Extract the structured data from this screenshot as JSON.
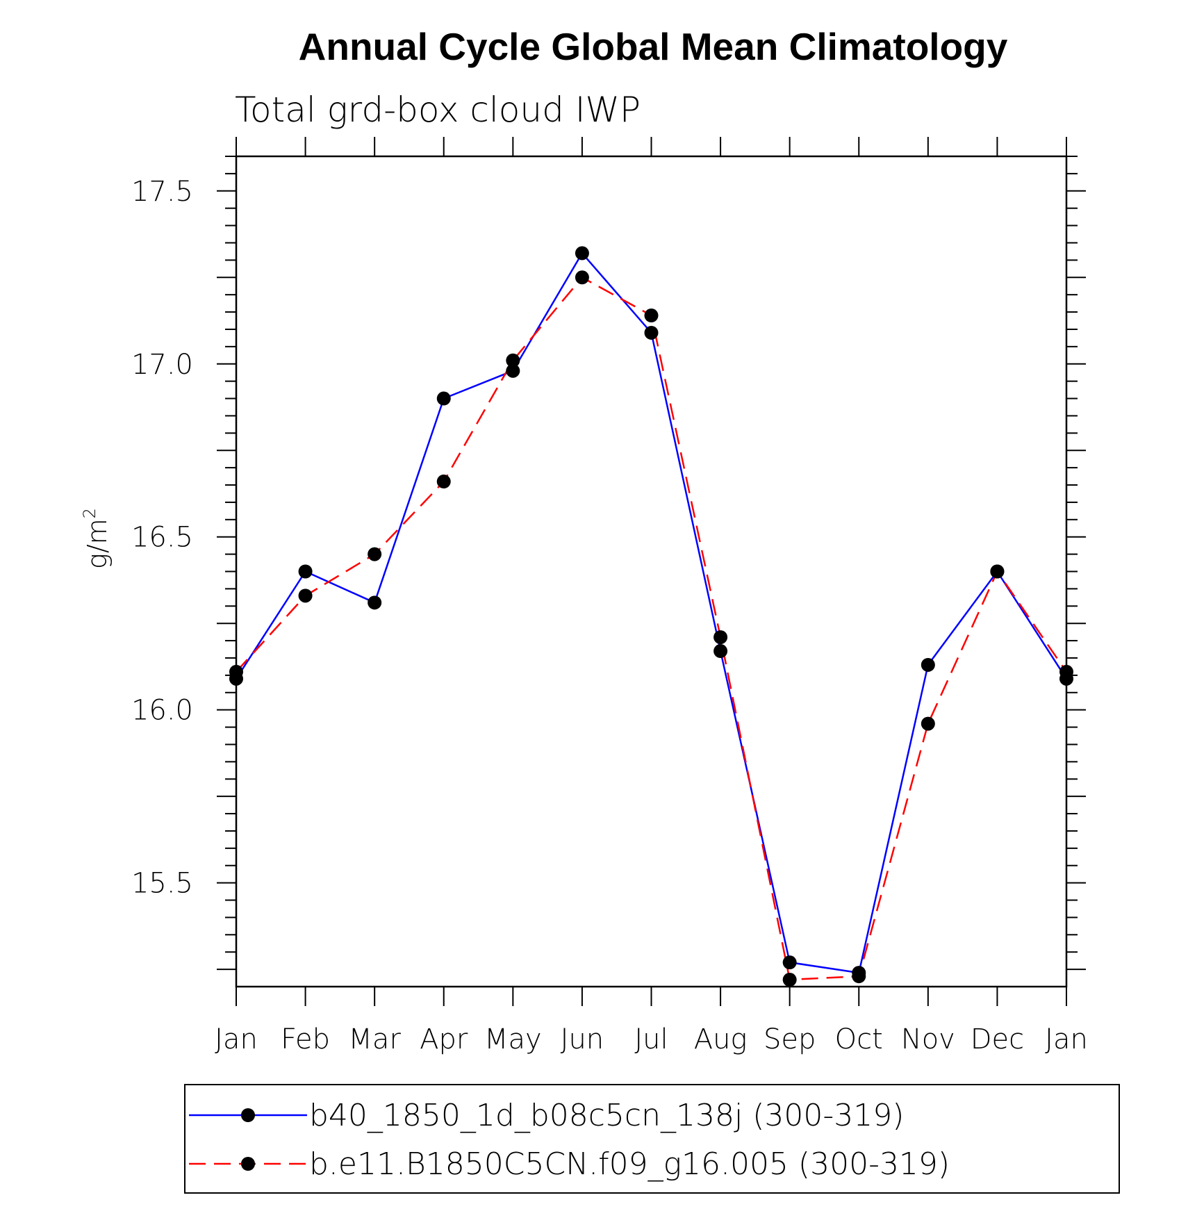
{
  "chart_data": {
    "type": "line",
    "title": "Annual Cycle Global Mean Climatology",
    "subtitle": "Total grd-box cloud IWP",
    "ylabel": "g/m",
    "ylabel_sup": "2",
    "xlabel": "",
    "categories": [
      "Jan",
      "Feb",
      "Mar",
      "Apr",
      "May",
      "Jun",
      "Jul",
      "Aug",
      "Sep",
      "Oct",
      "Nov",
      "Dec",
      "Jan"
    ],
    "ylim": [
      15.2,
      17.6
    ],
    "yticks": [
      "15.5",
      "16.0",
      "16.5",
      "17.0",
      "17.5"
    ],
    "grid": false,
    "legend_position": "bottom",
    "series": [
      {
        "name": "b40_1850_1d_b08c5cn_138j (300-319)",
        "color": "#0000ff",
        "line_style": "solid",
        "marker": "filled-circle",
        "values": [
          16.09,
          16.4,
          16.31,
          16.9,
          16.98,
          17.32,
          17.09,
          16.17,
          15.27,
          15.24,
          16.13,
          16.4,
          16.09
        ]
      },
      {
        "name": "b.e11.B1850C5CN.f09_g16.005 (300-319)",
        "color": "#ff0000",
        "line_style": "dashed",
        "marker": "filled-circle",
        "values": [
          16.11,
          16.33,
          16.45,
          16.66,
          17.01,
          17.25,
          17.14,
          16.21,
          15.22,
          15.23,
          15.96,
          16.4,
          16.11
        ]
      }
    ]
  }
}
